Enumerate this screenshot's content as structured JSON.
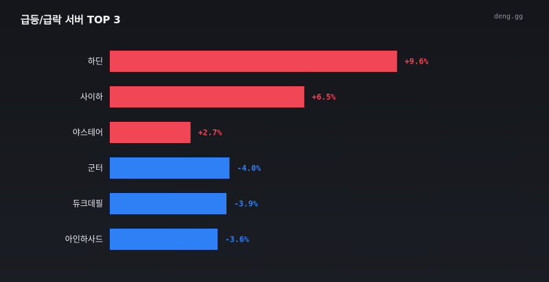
{
  "header": {
    "title": "급등/급락 서버 TOP 3",
    "brand": "deng.gg"
  },
  "colors": {
    "positive": "#f04656",
    "negative": "#2f80f5",
    "background": "#16181d"
  },
  "chart_data": {
    "type": "bar",
    "orientation": "horizontal",
    "categories": [
      "하딘",
      "사이하",
      "야스테어",
      "군터",
      "듀크데필",
      "아인하사드"
    ],
    "values": [
      9.6,
      6.5,
      2.7,
      -4.0,
      -3.9,
      -3.6
    ],
    "value_labels": [
      "+9.6%",
      "+6.5%",
      "+2.7%",
      "-4.0%",
      "-3.9%",
      "-3.6%"
    ],
    "title": "급등/급락 서버 TOP 3",
    "grid": false,
    "legend": "none"
  }
}
